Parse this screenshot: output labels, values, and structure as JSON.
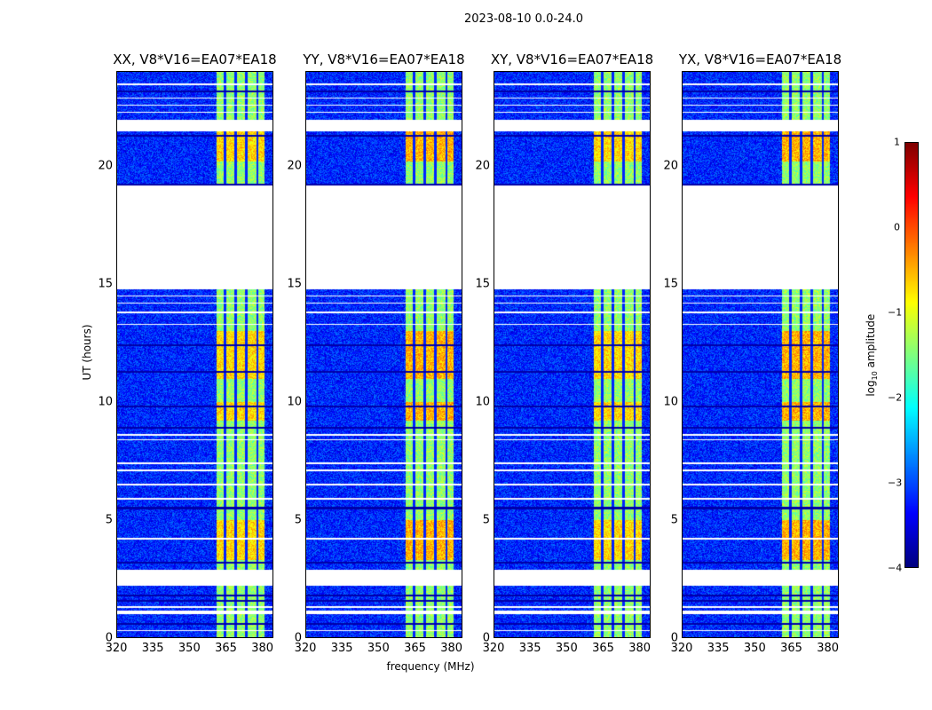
{
  "chart_data": {
    "type": "heatmap",
    "title": "2023-08-10 0.0-24.0",
    "xlabel": "frequency (MHz)",
    "ylabel": "UT (hours)",
    "xlim": [
      320,
      384.5
    ],
    "ylim": [
      0,
      24
    ],
    "xticks": [
      "320",
      "335",
      "350",
      "365",
      "380"
    ],
    "yticks": [
      "0",
      "5",
      "10",
      "15",
      "20"
    ],
    "panels": [
      {
        "title": "XX, V8*V16=EA07*EA18"
      },
      {
        "title": "YY, V8*V16=EA07*EA18"
      },
      {
        "title": "XY, V8*V16=EA07*EA18"
      },
      {
        "title": "YX, V8*V16=EA07*EA18"
      }
    ],
    "colorbar": {
      "label": "log10 amplitude",
      "label_main": "log",
      "label_sub": "10",
      "label_rest": " amplitude",
      "range": [
        -4,
        1
      ],
      "ticks": [
        "1",
        "0",
        "−1",
        "−2",
        "−3",
        "−4"
      ],
      "colormap": "jet"
    },
    "background_level": -3.2,
    "band_level": -1.4,
    "band_freq_range": [
      361,
      381
    ],
    "band_gap_freqs": [
      364.5,
      369,
      373.5,
      378
    ],
    "flagged_time_ranges": [
      [
        14.8,
        19.2
      ],
      [
        21.5,
        22.0
      ],
      [
        2.2,
        2.9
      ],
      [
        1.0,
        1.15
      ]
    ],
    "bright_time_ranges": [
      [
        3.3,
        5.0
      ],
      [
        9.2,
        10.0
      ],
      [
        20.2,
        21.5
      ],
      [
        11.0,
        13.0
      ]
    ]
  }
}
